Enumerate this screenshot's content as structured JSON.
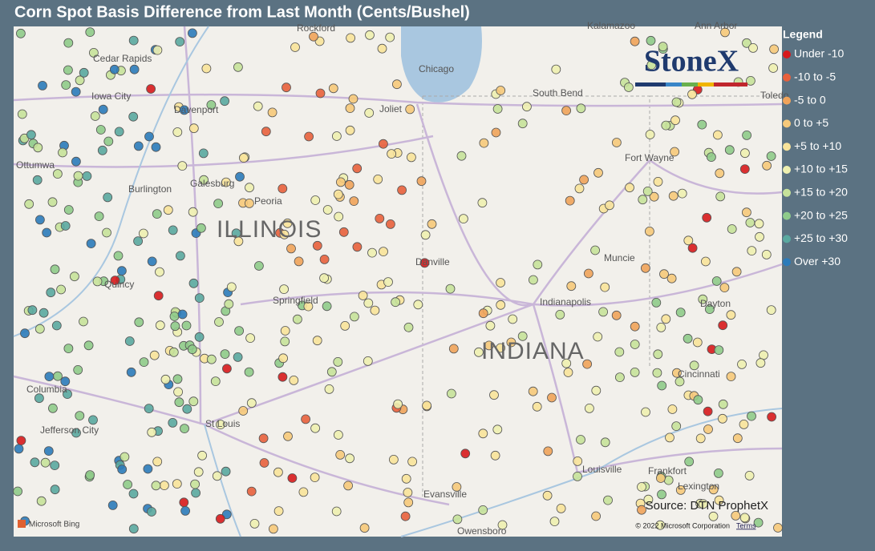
{
  "title": "Corn Spot Basis Difference from Last Month (Cents/Bushel)",
  "legend": {
    "title": "Legend",
    "items": [
      {
        "label": "Under -10",
        "color": "#d7191c"
      },
      {
        "label": "-10 to -5",
        "color": "#e8603c"
      },
      {
        "label": "-5 to 0",
        "color": "#f0a35a"
      },
      {
        "label": "0 to +5",
        "color": "#f6c97a"
      },
      {
        "label": "+5 to +10",
        "color": "#f8e39a"
      },
      {
        "label": "+10 to +15",
        "color": "#eef0b0"
      },
      {
        "label": "+15 to +20",
        "color": "#c6e29a"
      },
      {
        "label": "+20 to +25",
        "color": "#8fcb8a"
      },
      {
        "label": "+25 to +30",
        "color": "#5aa9a0"
      },
      {
        "label": "Over +30",
        "color": "#2b7bba"
      }
    ]
  },
  "logo": "StoneX",
  "states": [
    "ILLINOIS",
    "INDIANA"
  ],
  "cities": [
    "Cedar Rapids",
    "Iowa City",
    "Davenport",
    "Ottumwa",
    "Burlington",
    "Galesburg",
    "Peoria",
    "Springfield",
    "Quincy",
    "Columbia",
    "Jefferson City",
    "St Louis",
    "Rockford",
    "Chicago",
    "Joliet",
    "South Bend",
    "Fort Wayne",
    "Muncie",
    "Indianapolis",
    "Danville",
    "Evansville",
    "Owensboro",
    "Louisville",
    "Frankfort",
    "Lexington",
    "Cincinnati",
    "Dayton",
    "Ann Arbor",
    "Kalamazoo",
    "Toledo"
  ],
  "source": "Source: DTN ProphetX",
  "bing": "Microsoft Bing",
  "copyright": "© 2022 Microsoft Corporation",
  "terms": "Terms"
}
